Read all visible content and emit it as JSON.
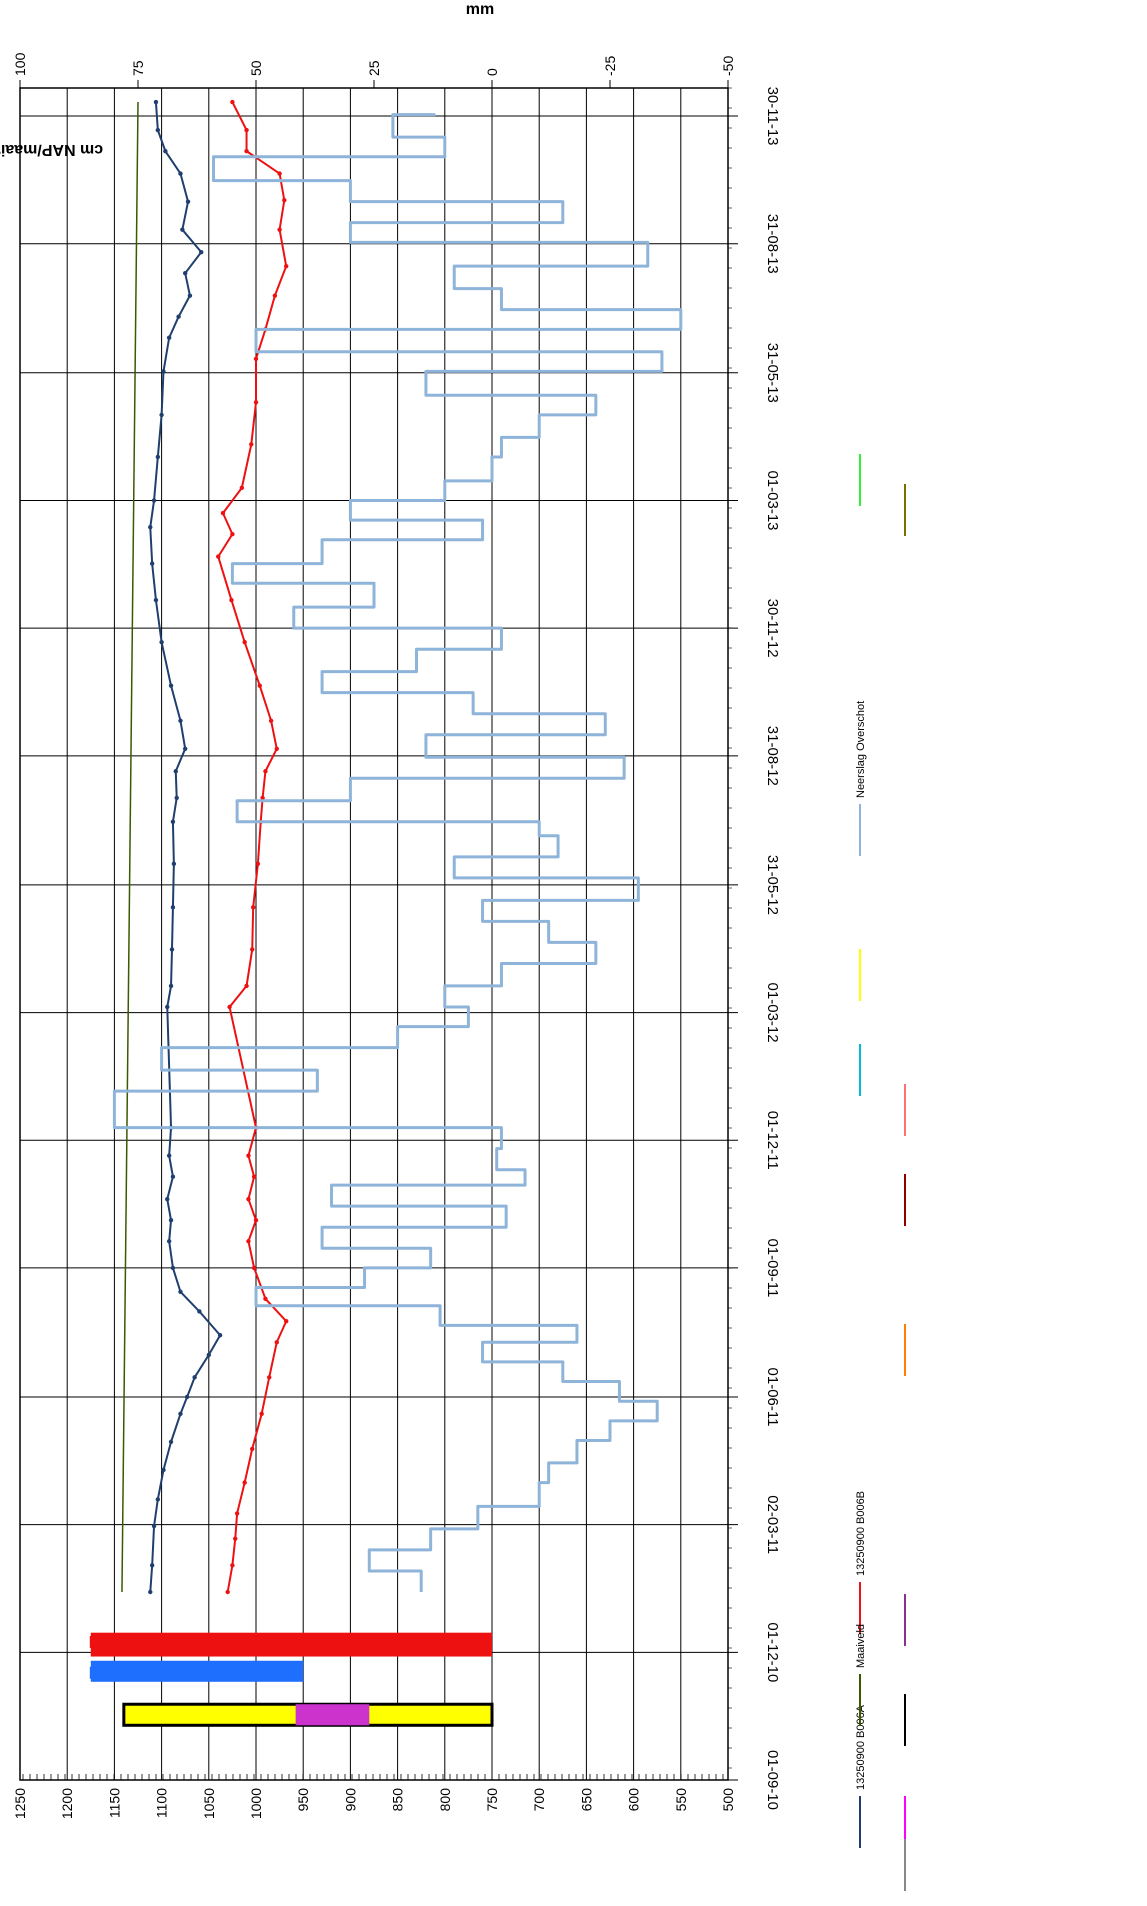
{
  "chart_data": {
    "type": "line",
    "rotation": "rotated 90 degrees clockwise",
    "y_left_label": "cm NAP/maaiveld",
    "y_left_ticks": [
      "500",
      "550",
      "600",
      "650",
      "700",
      "750",
      "800",
      "850",
      "900",
      "950",
      "1000",
      "1050",
      "1100",
      "1150",
      "1200",
      "1250"
    ],
    "y_left_range": [
      500,
      1250
    ],
    "y_right_label": "mm",
    "y_right_ticks": [
      "-50",
      "-25",
      "0",
      "25",
      "50",
      "75",
      "100"
    ],
    "y_right_range": [
      -50,
      100
    ],
    "x_ticks": [
      "01-09-10",
      "01-12-10",
      "02-03-11",
      "01-06-11",
      "01-09-11",
      "01-12-11",
      "01-03-12",
      "31-05-12",
      "31-08-12",
      "30-11-12",
      "01-03-13",
      "31-05-13",
      "31-08-13",
      "30-11-13"
    ],
    "grid": true,
    "legend": [
      {
        "label": "13250900 B006A",
        "color": "#1f3f6e"
      },
      {
        "label": "13250900 B006B",
        "color": "#ee1111"
      },
      {
        "label": "Maaiveld",
        "color": "#3a5a00"
      },
      {
        "label": "",
        "color": "#8b2f8b"
      },
      {
        "label": "",
        "color": "#ff00ff"
      },
      {
        "label": "",
        "color": "#ff7f00"
      },
      {
        "label": "",
        "color": "#000000"
      },
      {
        "label": "",
        "color": "#00bcd4"
      },
      {
        "label": "",
        "color": "#ffff00"
      },
      {
        "label": "Neerslag Overschot",
        "color": "#8fb4da"
      },
      {
        "label": "",
        "color": "#ff7070"
      },
      {
        "label": "",
        "color": "#8b0000"
      },
      {
        "label": "",
        "color": "#33ee33"
      },
      {
        "label": "",
        "color": "#7a7000"
      },
      {
        "label": "",
        "color": "#888888"
      }
    ],
    "series": [
      {
        "name": "13250900 B006A",
        "color": "#1f3f6e",
        "axis": "left",
        "points": [
          [
            "2011-01-13",
            1112
          ],
          [
            "2011-02-01",
            1110
          ],
          [
            "2011-03-01",
            1108
          ],
          [
            "2011-03-20",
            1104
          ],
          [
            "2011-04-10",
            1098
          ],
          [
            "2011-04-30",
            1090
          ],
          [
            "2011-05-20",
            1080
          ],
          [
            "2011-06-01",
            1073
          ],
          [
            "2011-06-15",
            1065
          ],
          [
            "2011-07-01",
            1050
          ],
          [
            "2011-07-15",
            1038
          ],
          [
            "2011-08-01",
            1060
          ],
          [
            "2011-08-15",
            1080
          ],
          [
            "2011-09-01",
            1088
          ],
          [
            "2011-09-20",
            1092
          ],
          [
            "2011-10-05",
            1090
          ],
          [
            "2011-10-20",
            1094
          ],
          [
            "2011-11-05",
            1088
          ],
          [
            "2011-11-20",
            1092
          ],
          [
            "2011-12-10",
            1090
          ],
          [
            "2012-03-05",
            1094
          ],
          [
            "2012-03-20",
            1090
          ],
          [
            "2012-04-15",
            1089
          ],
          [
            "2012-05-15",
            1088
          ],
          [
            "2012-06-15",
            1087
          ],
          [
            "2012-07-15",
            1088
          ],
          [
            "2012-08-01",
            1084
          ],
          [
            "2012-08-20",
            1085
          ],
          [
            "2012-09-05",
            1075
          ],
          [
            "2012-09-25",
            1080
          ],
          [
            "2012-10-20",
            1090
          ],
          [
            "2012-11-20",
            1100
          ],
          [
            "2012-12-20",
            1106
          ],
          [
            "2013-01-15",
            1110
          ],
          [
            "2013-02-10",
            1112
          ],
          [
            "2013-03-01",
            1108
          ],
          [
            "2013-04-01",
            1104
          ],
          [
            "2013-05-01",
            1100
          ],
          [
            "2013-06-01",
            1098
          ],
          [
            "2013-06-25",
            1092
          ],
          [
            "2013-07-10",
            1082
          ],
          [
            "2013-07-25",
            1070
          ],
          [
            "2013-08-10",
            1075
          ],
          [
            "2013-08-25",
            1058
          ],
          [
            "2013-09-10",
            1078
          ],
          [
            "2013-09-30",
            1072
          ],
          [
            "2013-10-20",
            1080
          ],
          [
            "2013-11-05",
            1096
          ],
          [
            "2013-11-20",
            1104
          ],
          [
            "2013-12-10",
            1106
          ]
        ]
      },
      {
        "name": "13250900 B006B",
        "color": "#ee1111",
        "axis": "left",
        "points": [
          [
            "2011-01-13",
            1030
          ],
          [
            "2011-02-01",
            1025
          ],
          [
            "2011-02-20",
            1022
          ],
          [
            "2011-03-10",
            1020
          ],
          [
            "2011-04-01",
            1012
          ],
          [
            "2011-04-25",
            1004
          ],
          [
            "2011-05-20",
            994
          ],
          [
            "2011-06-15",
            986
          ],
          [
            "2011-07-10",
            978
          ],
          [
            "2011-07-25",
            968
          ],
          [
            "2011-08-10",
            990
          ],
          [
            "2011-09-01",
            1002
          ],
          [
            "2011-09-20",
            1008
          ],
          [
            "2011-10-05",
            1000
          ],
          [
            "2011-10-20",
            1008
          ],
          [
            "2011-11-05",
            1002
          ],
          [
            "2011-11-20",
            1008
          ],
          [
            "2011-12-10",
            1000
          ],
          [
            "2012-03-05",
            1028
          ],
          [
            "2012-03-20",
            1010
          ],
          [
            "2012-04-15",
            1004
          ],
          [
            "2012-05-15",
            1003
          ],
          [
            "2012-06-15",
            998
          ],
          [
            "2012-07-15",
            995
          ],
          [
            "2012-08-01",
            993
          ],
          [
            "2012-08-20",
            990
          ],
          [
            "2012-09-05",
            978
          ],
          [
            "2012-09-25",
            984
          ],
          [
            "2012-10-20",
            996
          ],
          [
            "2012-11-20",
            1012
          ],
          [
            "2012-12-20",
            1026
          ],
          [
            "2013-01-20",
            1040
          ],
          [
            "2013-02-05",
            1025
          ],
          [
            "2013-02-20",
            1035
          ],
          [
            "2013-03-10",
            1015
          ],
          [
            "2013-04-10",
            1005
          ],
          [
            "2013-05-10",
            1000
          ],
          [
            "2013-06-10",
            1000
          ],
          [
            "2013-07-01",
            990
          ],
          [
            "2013-07-25",
            980
          ],
          [
            "2013-08-15",
            968
          ],
          [
            "2013-09-10",
            975
          ],
          [
            "2013-10-01",
            970
          ],
          [
            "2013-10-20",
            975
          ],
          [
            "2013-11-05",
            1010
          ],
          [
            "2013-11-20",
            1010
          ],
          [
            "2013-12-10",
            1025
          ]
        ]
      },
      {
        "name": "Maaiveld",
        "color": "#3a5a00",
        "axis": "left",
        "points": [
          [
            "2011-01-13",
            1142
          ],
          [
            "2013-12-10",
            1125
          ]
        ]
      },
      {
        "name": "Neerslag Overschot",
        "color": "#8fb4da",
        "axis": "right",
        "step": true,
        "points": [
          [
            "2011-01-13",
            15
          ],
          [
            "2011-01-28",
            26
          ],
          [
            "2011-02-12",
            13
          ],
          [
            "2011-02-27",
            3
          ],
          [
            "2011-03-15",
            -10
          ],
          [
            "2011-04-01",
            -12
          ],
          [
            "2011-04-15",
            -18
          ],
          [
            "2011-05-01",
            -25
          ],
          [
            "2011-05-15",
            -35
          ],
          [
            "2011-05-29",
            -27
          ],
          [
            "2011-06-12",
            -15
          ],
          [
            "2011-06-26",
            2
          ],
          [
            "2011-07-10",
            -18
          ],
          [
            "2011-07-22",
            11
          ],
          [
            "2011-08-05",
            50
          ],
          [
            "2011-08-18",
            27
          ],
          [
            "2011-09-01",
            13
          ],
          [
            "2011-09-15",
            36
          ],
          [
            "2011-09-30",
            -3
          ],
          [
            "2011-10-15",
            34
          ],
          [
            "2011-10-30",
            -7
          ],
          [
            "2011-11-10",
            -1
          ],
          [
            "2011-11-25",
            -2
          ],
          [
            "2011-12-10",
            80
          ],
          [
            "2012-01-05",
            37
          ],
          [
            "2012-01-20",
            70
          ],
          [
            "2012-02-05",
            20
          ],
          [
            "2012-02-20",
            5
          ],
          [
            "2012-03-05",
            10
          ],
          [
            "2012-03-20",
            -2
          ],
          [
            "2012-04-05",
            -22
          ],
          [
            "2012-04-20",
            -12
          ],
          [
            "2012-05-05",
            2
          ],
          [
            "2012-05-20",
            -31
          ],
          [
            "2012-06-05",
            8
          ],
          [
            "2012-06-20",
            -14
          ],
          [
            "2012-07-05",
            -10
          ],
          [
            "2012-07-15",
            54
          ],
          [
            "2012-07-30",
            30
          ],
          [
            "2012-08-15",
            -28
          ],
          [
            "2012-08-30",
            14
          ],
          [
            "2012-09-15",
            -24
          ],
          [
            "2012-09-30",
            4
          ],
          [
            "2012-10-15",
            36
          ],
          [
            "2012-10-30",
            16
          ],
          [
            "2012-11-15",
            -2
          ],
          [
            "2012-11-30",
            42
          ],
          [
            "2012-12-15",
            25
          ],
          [
            "2013-01-01",
            55
          ],
          [
            "2013-01-15",
            36
          ],
          [
            "2013-02-01",
            2
          ],
          [
            "2013-02-15",
            30
          ],
          [
            "2013-03-01",
            10
          ],
          [
            "2013-03-15",
            0
          ],
          [
            "2013-04-01",
            -2
          ],
          [
            "2013-04-15",
            -10
          ],
          [
            "2013-05-01",
            -22
          ],
          [
            "2013-05-15",
            14
          ],
          [
            "2013-06-01",
            -36
          ],
          [
            "2013-06-15",
            50
          ],
          [
            "2013-07-01",
            -40
          ],
          [
            "2013-07-15",
            -2
          ],
          [
            "2013-07-30",
            8
          ],
          [
            "2013-08-15",
            -33
          ],
          [
            "2013-09-01",
            30
          ],
          [
            "2013-09-15",
            -15
          ],
          [
            "2013-09-30",
            30
          ],
          [
            "2013-10-15",
            59
          ],
          [
            "2013-11-01",
            10
          ],
          [
            "2013-11-15",
            21
          ],
          [
            "2013-12-01",
            12
          ]
        ]
      }
    ],
    "bars": [
      {
        "name": "blue-status-bar",
        "color": "#1f6fff",
        "range_left": [
          950,
          1175
        ],
        "start": "2010-11-10",
        "end": "2010-11-25"
      },
      {
        "name": "red-status-bar",
        "color": "#ee1111",
        "range_left": [
          750,
          1175
        ],
        "start": "2010-11-28",
        "end": "2010-12-15"
      },
      {
        "name": "yellow-status-bar",
        "color": "#ffff00",
        "range_left": [
          750,
          1140
        ],
        "start": "2010-10-10",
        "end": "2010-10-25"
      }
    ]
  }
}
